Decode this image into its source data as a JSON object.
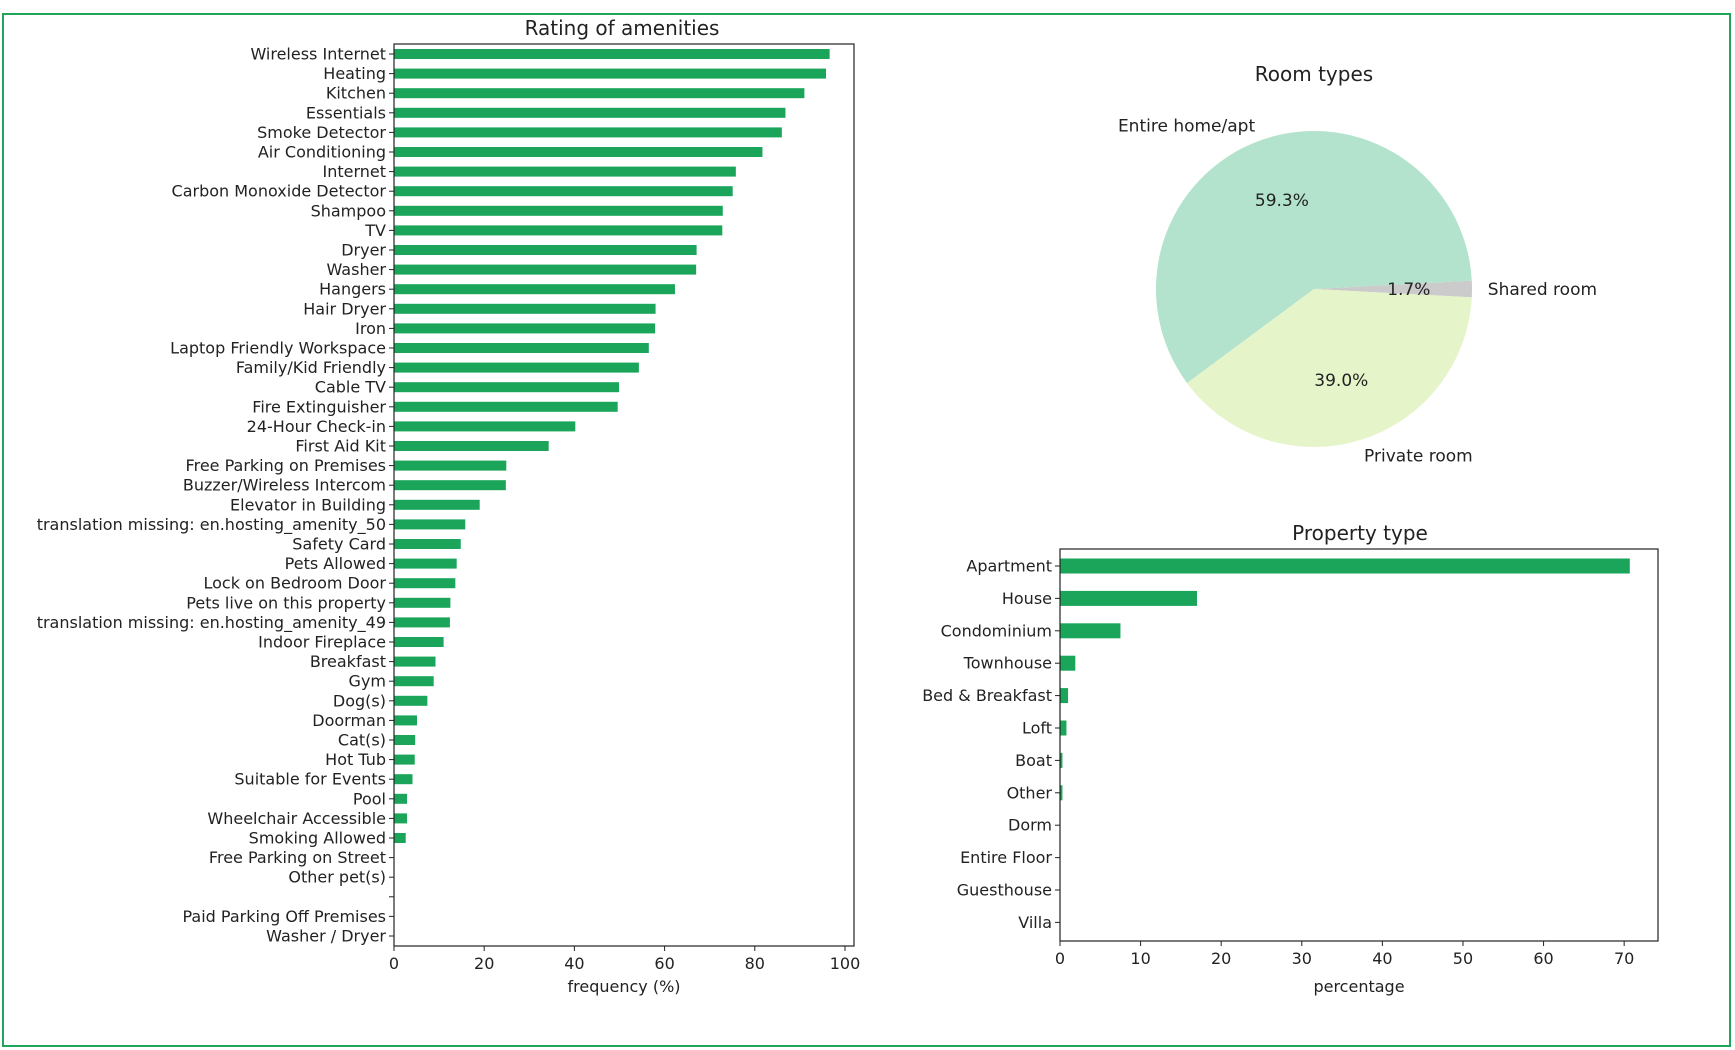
{
  "colors": {
    "bar": "#1aa55a",
    "frame": "#1fa65a",
    "axis": "#222222"
  },
  "chart_data": [
    {
      "type": "bar",
      "orientation": "horizontal",
      "title": "Rating of amenities",
      "xlabel": "frequency (%)",
      "ylabel": "",
      "xlim": [
        0,
        102
      ],
      "xticks": [
        0,
        20,
        40,
        60,
        80,
        100
      ],
      "categories": [
        "Wireless Internet",
        "Heating",
        "Kitchen",
        "Essentials",
        "Smoke Detector",
        "Air Conditioning",
        "Internet",
        "Carbon Monoxide Detector",
        "Shampoo",
        "TV",
        "Dryer",
        "Washer",
        "Hangers",
        "Hair Dryer",
        "Iron",
        "Laptop Friendly Workspace",
        "Family/Kid Friendly",
        "Cable TV",
        "Fire Extinguisher",
        "24-Hour Check-in",
        "First Aid Kit",
        "Free Parking on Premises",
        "Buzzer/Wireless Intercom",
        "Elevator in Building",
        "translation missing: en.hosting_amenity_50",
        "Safety Card",
        "Pets Allowed",
        "Lock on Bedroom Door",
        "Pets live on this property",
        "translation missing: en.hosting_amenity_49",
        "Indoor Fireplace",
        "Breakfast",
        "Gym",
        "Dog(s)",
        "Doorman",
        "Cat(s)",
        "Hot Tub",
        "Suitable for Events",
        "Pool",
        "Wheelchair Accessible",
        "Smoking Allowed",
        "Free Parking on Street",
        "Other pet(s)",
        "",
        "Paid Parking Off Premises",
        "Washer / Dryer"
      ],
      "values": [
        96.6,
        95.8,
        91.0,
        86.8,
        86.0,
        81.7,
        75.8,
        75.1,
        72.9,
        72.8,
        67.1,
        67.0,
        62.3,
        58.0,
        57.9,
        56.5,
        54.3,
        49.9,
        49.6,
        40.2,
        34.3,
        24.9,
        24.8,
        19.0,
        15.8,
        14.8,
        13.9,
        13.6,
        12.5,
        12.4,
        11.0,
        9.2,
        8.8,
        7.4,
        5.1,
        4.7,
        4.6,
        4.1,
        2.9,
        2.9,
        2.6,
        0.1,
        0.1,
        0.0,
        0.0,
        0.0
      ]
    },
    {
      "type": "pie",
      "title": "Room types",
      "labels": [
        "Shared room",
        "Entire home/apt",
        "Private room"
      ],
      "values": [
        1.7,
        59.3,
        39.0
      ],
      "value_labels": [
        "1.7%",
        "59.3%",
        "39.0%"
      ],
      "colors": [
        "#cbcbcb",
        "#b3e3cc",
        "#e5f4c9"
      ]
    },
    {
      "type": "bar",
      "orientation": "horizontal",
      "title": "Property type",
      "xlabel": "percentage",
      "ylabel": "",
      "xlim": [
        0,
        74.2
      ],
      "xticks": [
        0,
        10,
        20,
        30,
        40,
        50,
        60,
        70
      ],
      "categories": [
        "Apartment",
        "House",
        "Condominium",
        "Townhouse",
        "Bed & Breakfast",
        "Loft",
        "Boat",
        "Other",
        "Dorm",
        "Entire Floor",
        "Guesthouse",
        "Villa"
      ],
      "values": [
        70.7,
        17.0,
        7.5,
        1.9,
        1.0,
        0.8,
        0.3,
        0.3,
        0.05,
        0.05,
        0.05,
        0.05
      ]
    }
  ]
}
